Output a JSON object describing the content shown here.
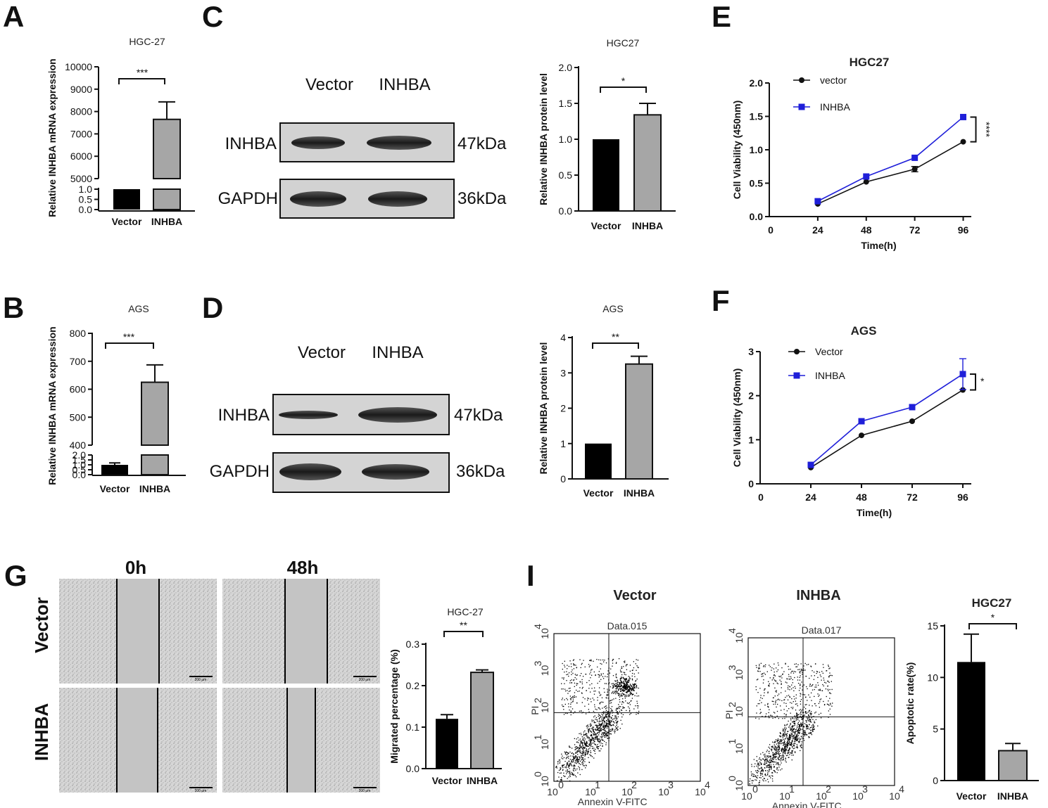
{
  "panel_labels": [
    "A",
    "B",
    "C",
    "D",
    "E",
    "F",
    "G",
    "I"
  ],
  "colors": {
    "black": "#000000",
    "gray": "#a6a6a6",
    "blue": "#1f1fd9",
    "line": "#111111"
  },
  "panel_A": {
    "title": "HGC-27",
    "ylabel": "Relative INHBA mRNA expression",
    "upper_ticks": [
      "10000",
      "9000",
      "8000",
      "7000",
      "6000",
      "5000"
    ],
    "lower_ticks": [
      "1.0",
      "0.5",
      "0.0"
    ],
    "sig": "***"
  },
  "panel_B": {
    "title": "AGS",
    "ylabel": "Relative INHBA mRNA expression",
    "upper_ticks": [
      "800",
      "700",
      "600",
      "500",
      "400"
    ],
    "lower_ticks": [
      "2.0",
      "1.5",
      "1.0",
      "0.5",
      "0.0"
    ],
    "sig": "***"
  },
  "panel_C": {
    "blot": {
      "lanes": [
        "Vector",
        "INHBA"
      ],
      "rows": [
        "INHBA",
        "GAPDH"
      ],
      "sizes": [
        "47kDa",
        "36kDa"
      ]
    },
    "sig": "*"
  },
  "panel_D": {
    "blot": {
      "lanes": [
        "Vector",
        "INHBA"
      ],
      "rows": [
        "INHBA",
        "GAPDH"
      ],
      "sizes": [
        "47kDa",
        "36kDa"
      ]
    },
    "sig": "**"
  },
  "panel_E": {
    "sig": "****"
  },
  "panel_F": {
    "sig": "*"
  },
  "panel_G": {
    "times": [
      "0h",
      "48h"
    ],
    "rows": [
      "Vector",
      "INHBA"
    ],
    "scale": "200 μm",
    "sig": "**"
  },
  "panel_I": {
    "plots": [
      {
        "title": "Vector",
        "sample": "Data.015"
      },
      {
        "title": "INHBA",
        "sample": "Data.017"
      }
    ],
    "xlabel": "Annexin V-FITC",
    "ylabel": "PI",
    "ticks": [
      "10",
      "10",
      "10",
      "10",
      "10"
    ],
    "exps": [
      "0",
      "1",
      "2",
      "3",
      "4"
    ],
    "sig": "*"
  },
  "chart_data": [
    {
      "id": "A",
      "type": "bar",
      "title": "HGC-27",
      "ylabel": "Relative INHBA mRNA expression",
      "categories": [
        "Vector",
        "INHBA"
      ],
      "values": [
        1.0,
        7650
      ],
      "errors": [
        0,
        780
      ],
      "ylim": [
        0,
        10000
      ],
      "axis_break": [
        1.0,
        5000
      ]
    },
    {
      "id": "B",
      "type": "bar",
      "title": "AGS",
      "ylabel": "Relative INHBA mRNA expression",
      "categories": [
        "Vector",
        "INHBA"
      ],
      "values": [
        1.0,
        625
      ],
      "errors": [
        0.2,
        62
      ],
      "ylim": [
        0,
        800
      ],
      "axis_break": [
        2.0,
        400
      ]
    },
    {
      "id": "C",
      "type": "bar",
      "title": "HGC27",
      "ylabel": "Relative INHBA protein level",
      "categories": [
        "Vector",
        "INHBA"
      ],
      "values": [
        1.0,
        1.34
      ],
      "errors": [
        0,
        0.16
      ],
      "ylim": [
        0,
        2.0
      ],
      "yticks": [
        "0.0",
        "0.5",
        "1.0",
        "1.5",
        "2.0"
      ]
    },
    {
      "id": "D",
      "type": "bar",
      "title": "AGS",
      "ylabel": "Relative INHBA protein level",
      "categories": [
        "Vector",
        "INHBA"
      ],
      "values": [
        1.0,
        3.25
      ],
      "errors": [
        0,
        0.22
      ],
      "ylim": [
        0,
        4
      ],
      "yticks": [
        "0",
        "1",
        "2",
        "3",
        "4"
      ]
    },
    {
      "id": "E",
      "type": "line",
      "title": "HGC27",
      "xlabel": "Time(h)",
      "ylabel": "Cell Viability (450nm)",
      "x": [
        24,
        48,
        72,
        96
      ],
      "xticks": [
        "0",
        "24",
        "48",
        "72",
        "96"
      ],
      "yticks": [
        "0.0",
        "0.5",
        "1.0",
        "1.5",
        "2.0"
      ],
      "xlim": [
        0,
        100
      ],
      "ylim": [
        0,
        2.0
      ],
      "series": [
        {
          "name": "vector",
          "values": [
            0.19,
            0.52,
            0.71,
            1.12
          ],
          "errors": [
            0,
            0,
            0.04,
            0
          ]
        },
        {
          "name": "INHBA",
          "values": [
            0.23,
            0.6,
            0.88,
            1.49
          ],
          "errors": [
            0,
            0,
            0,
            0
          ]
        }
      ]
    },
    {
      "id": "F",
      "type": "line",
      "title": "AGS",
      "xlabel": "Time(h)",
      "ylabel": "Cell Viability (450nm)",
      "x": [
        24,
        48,
        72,
        96
      ],
      "xticks": [
        "0",
        "24",
        "48",
        "72",
        "96"
      ],
      "yticks": [
        "0",
        "1",
        "2",
        "3"
      ],
      "xlim": [
        0,
        100
      ],
      "ylim": [
        0,
        3
      ],
      "series": [
        {
          "name": "Vector",
          "values": [
            0.37,
            1.1,
            1.42,
            2.13
          ],
          "errors": [
            0,
            0,
            0,
            0
          ]
        },
        {
          "name": "INHBA",
          "values": [
            0.43,
            1.42,
            1.74,
            2.49
          ],
          "errors": [
            0,
            0,
            0,
            0.35
          ]
        }
      ]
    },
    {
      "id": "G",
      "type": "bar",
      "title": "HGC-27",
      "ylabel": "Migrated percentage (%)",
      "categories": [
        "Vector",
        "INHBA"
      ],
      "values": [
        0.12,
        0.232
      ],
      "errors": [
        0.01,
        0.006
      ],
      "ylim": [
        0,
        0.3
      ],
      "yticks": [
        "0.0",
        "0.1",
        "0.2",
        "0.3"
      ]
    },
    {
      "id": "I",
      "type": "bar",
      "title": "HGC27",
      "ylabel": "Apoptotic rate(%)",
      "categories": [
        "Vector",
        "INHBA"
      ],
      "values": [
        11.5,
        2.9
      ],
      "errors": [
        2.7,
        0.7
      ],
      "ylim": [
        0,
        15
      ],
      "yticks": [
        "0",
        "5",
        "10",
        "15"
      ]
    }
  ]
}
